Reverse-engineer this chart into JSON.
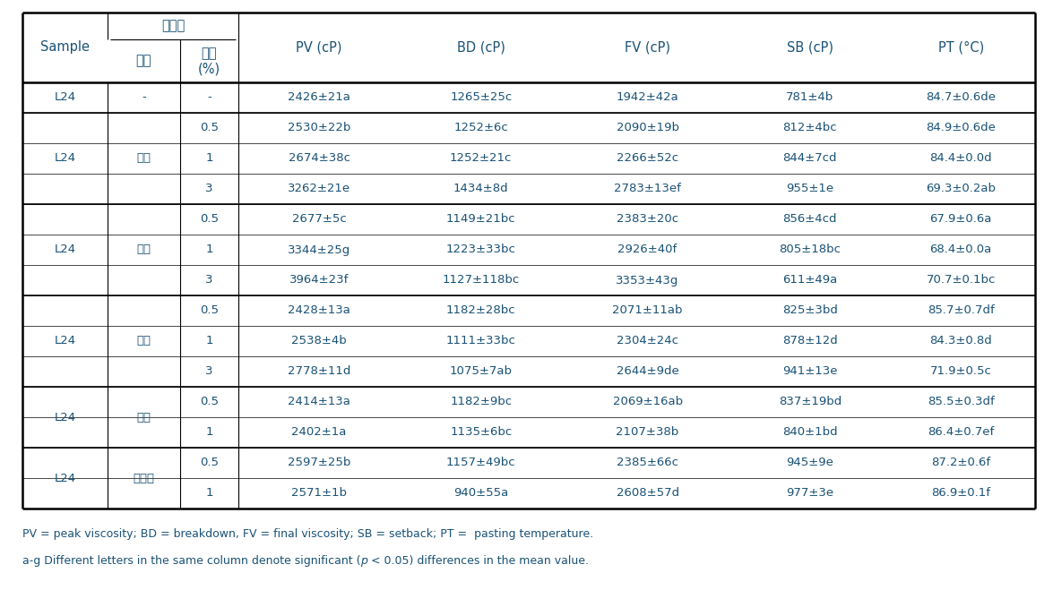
{
  "footnote1": "PV = peak viscosity; BD = breakdown, FV = final viscosity; SB = setback; PT =  pasting temperature.",
  "footnote2_pre": "a-g Different letters in the same column denote significant (",
  "footnote2_p": "p",
  "footnote2_post": " < 0.05) differences in the mean value.",
  "rows": [
    [
      "-",
      "-",
      "2426±21a",
      "1265±25c",
      "1942±42a",
      "781±4b",
      "84.7±0.6de"
    ],
    [
      "구아",
      "0.5",
      "2530±22b",
      "1252±6c",
      "2090±19b",
      "812±4bc",
      "84.9±0.6de"
    ],
    [
      "구아",
      "1",
      "2674±38c",
      "1252±21c",
      "2266±52c",
      "844±7cd",
      "84.4±0.0d"
    ],
    [
      "구아",
      "3",
      "3262±21e",
      "1434±8d",
      "2783±13ef",
      "955±1e",
      "69.3±0.2ab"
    ],
    [
      "잔탄",
      "0.5",
      "2677±5c",
      "1149±21bc",
      "2383±20c",
      "856±4cd",
      "67.9±0.6a"
    ],
    [
      "잔탄",
      "1",
      "3344±25g",
      "1223±33bc",
      "2926±40f",
      "805±18bc",
      "68.4±0.0a"
    ],
    [
      "잔탄",
      "3",
      "3964±23f",
      "1127±118bc",
      "3353±43g",
      "611±49a",
      "70.7±0.1bc"
    ],
    [
      "젤란",
      "0.5",
      "2428±13a",
      "1182±28bc",
      "2071±11ab",
      "825±3bd",
      "85.7±0.7df"
    ],
    [
      "젤란",
      "1",
      "2538±4b",
      "1111±33bc",
      "2304±24c",
      "878±12d",
      "84.3±0.8d"
    ],
    [
      "젤란",
      "3",
      "2778±11d",
      "1075±7ab",
      "2644±9de",
      "941±13e",
      "71.9±0.5c"
    ],
    [
      "펙틴",
      "0.5",
      "2414±13a",
      "1182±9bc",
      "2069±16ab",
      "837±19bd",
      "85.5±0.3df"
    ],
    [
      "펙틴",
      "1",
      "2402±1a",
      "1135±6bc",
      "2107±38b",
      "840±1bd",
      "86.4±0.7ef"
    ],
    [
      "알긴산",
      "0.5",
      "2597±25b",
      "1157±49bc",
      "2385±66c",
      "945±9e",
      "87.2±0.6f"
    ],
    [
      "알긴산",
      "1",
      "2571±1b",
      "940±55a",
      "2608±57d",
      "977±3e",
      "86.9±0.1f"
    ]
  ],
  "groups": [
    {
      "gum": "-",
      "rows": [
        0
      ],
      "sample": "L24"
    },
    {
      "gum": "구아",
      "rows": [
        1,
        2,
        3
      ],
      "sample": "L24"
    },
    {
      "gum": "잔탄",
      "rows": [
        4,
        5,
        6
      ],
      "sample": "L24"
    },
    {
      "gum": "젤란",
      "rows": [
        7,
        8,
        9
      ],
      "sample": "L24"
    },
    {
      "gum": "펙틴",
      "rows": [
        10,
        11
      ],
      "sample": "L24"
    },
    {
      "gum": "알긴산",
      "rows": [
        12,
        13
      ],
      "sample": "L24"
    }
  ],
  "text_color": "#1a5276",
  "font_size": 9.5,
  "header_font_size": 10.5
}
